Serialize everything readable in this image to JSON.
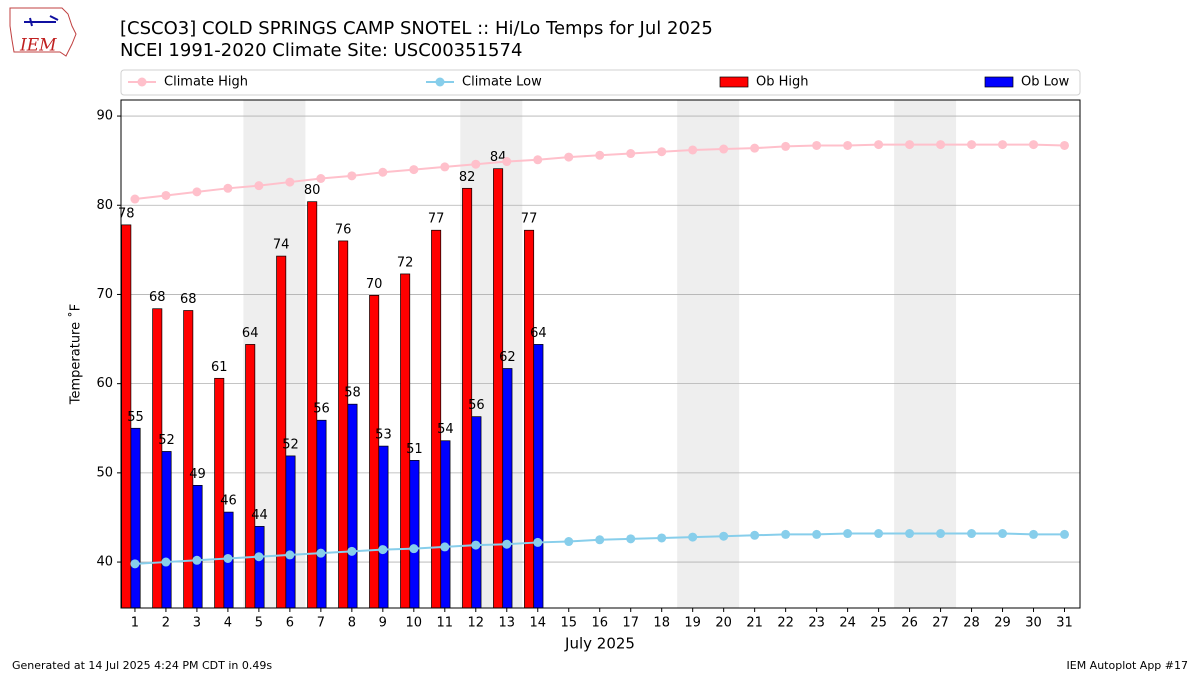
{
  "header": {
    "logo_text": "IEM"
  },
  "chart_data": {
    "type": "bar",
    "title": "[CSCO3] COLD SPRINGS CAMP SNOTEL :: Hi/Lo Temps for Jul 2025",
    "subtitle": "NCEI 1991-2020 Climate Site: USC00351574",
    "x_label": "July 2025",
    "y_label": "Temperature ˚F",
    "x": [
      1,
      2,
      3,
      4,
      5,
      6,
      7,
      8,
      9,
      10,
      11,
      12,
      13,
      14,
      15,
      16,
      17,
      18,
      19,
      20,
      21,
      22,
      23,
      24,
      25,
      26,
      27,
      28,
      29,
      30,
      31
    ],
    "xlim": [
      0.55,
      31.5
    ],
    "xticks": [
      1,
      2,
      3,
      4,
      5,
      6,
      7,
      8,
      9,
      10,
      11,
      12,
      13,
      14,
      15,
      16,
      17,
      18,
      19,
      20,
      21,
      22,
      23,
      24,
      25,
      26,
      27,
      28,
      29,
      30,
      31
    ],
    "ylim": [
      34.85,
      91.8
    ],
    "yticks": [
      40,
      50,
      60,
      70,
      80,
      90
    ],
    "grid": true,
    "legend": "top",
    "shaded_ranges": [
      [
        4.5,
        6.5
      ],
      [
        11.5,
        13.5
      ],
      [
        18.5,
        20.5
      ],
      [
        25.5,
        27.5
      ]
    ],
    "shade_color": "#eeeeee",
    "series": [
      {
        "name": "Climate High",
        "type": "line",
        "color": "#ffc0cb",
        "values": [
          80.7,
          81.1,
          81.5,
          81.9,
          82.2,
          82.6,
          83.0,
          83.3,
          83.7,
          84.0,
          84.3,
          84.6,
          84.9,
          85.1,
          85.4,
          85.6,
          85.8,
          86.0,
          86.2,
          86.3,
          86.4,
          86.6,
          86.7,
          86.7,
          86.8,
          86.8,
          86.8,
          86.8,
          86.8,
          86.8,
          86.7
        ]
      },
      {
        "name": "Climate Low",
        "type": "line",
        "color": "#87ceeb",
        "values": [
          39.8,
          40.0,
          40.2,
          40.4,
          40.6,
          40.8,
          41.0,
          41.2,
          41.4,
          41.5,
          41.7,
          41.9,
          42.0,
          42.2,
          42.3,
          42.5,
          42.6,
          42.7,
          42.8,
          42.9,
          43.0,
          43.1,
          43.1,
          43.2,
          43.2,
          43.2,
          43.2,
          43.2,
          43.2,
          43.1,
          43.1
        ]
      },
      {
        "name": "Ob High",
        "type": "bar",
        "color": "#ff0000",
        "values": [
          77.8,
          68.4,
          68.2,
          60.6,
          64.4,
          74.3,
          80.4,
          76.0,
          69.9,
          72.3,
          77.2,
          81.9,
          84.1,
          77.2,
          null,
          null,
          null,
          null,
          null,
          null,
          null,
          null,
          null,
          null,
          null,
          null,
          null,
          null,
          null,
          null,
          null
        ],
        "value_labels": [
          "78",
          "68",
          "68",
          "61",
          "64",
          "74",
          "80",
          "76",
          "70",
          "72",
          "77",
          "82",
          "84",
          "77",
          null,
          null,
          null,
          null,
          null,
          null,
          null,
          null,
          null,
          null,
          null,
          null,
          null,
          null,
          null,
          null,
          null
        ]
      },
      {
        "name": "Ob Low",
        "type": "bar",
        "color": "#0000ff",
        "values": [
          55.0,
          52.4,
          48.6,
          45.6,
          44.0,
          51.9,
          55.9,
          57.7,
          53.0,
          51.4,
          53.6,
          56.3,
          61.7,
          64.4,
          null,
          null,
          null,
          null,
          null,
          null,
          null,
          null,
          null,
          null,
          null,
          null,
          null,
          null,
          null,
          null,
          null
        ],
        "value_labels": [
          "55",
          "52",
          "49",
          "46",
          "44",
          "52",
          "56",
          "58",
          "53",
          "51",
          "54",
          "56",
          "62",
          "64",
          null,
          null,
          null,
          null,
          null,
          null,
          null,
          null,
          null,
          null,
          null,
          null,
          null,
          null,
          null,
          null,
          null
        ]
      }
    ],
    "footer_left": "Generated at 14 Jul 2025 4:24 PM CDT in 0.49s",
    "footer_right": "IEM Autoplot App #17"
  }
}
